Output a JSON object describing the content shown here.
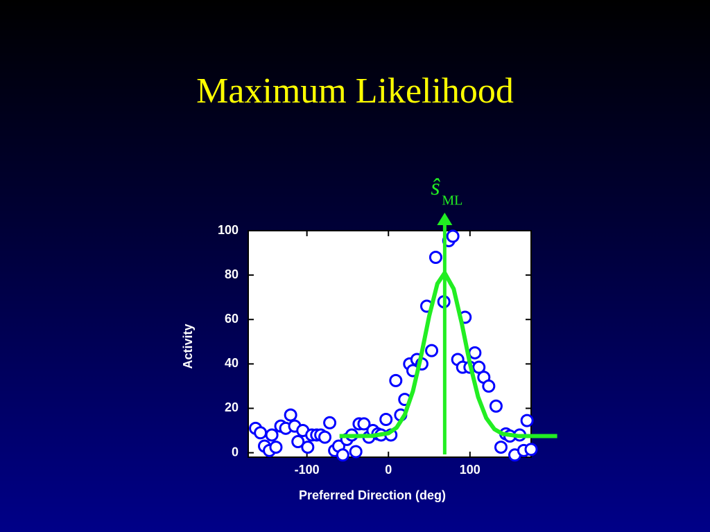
{
  "chart_data": {
    "type": "scatter",
    "title": "Maximum Likelihood",
    "x_label": "Preferred Direction (deg)",
    "y_label": "Activity",
    "xlim": [
      -172,
      175
    ],
    "ylim": [
      -2,
      100
    ],
    "xticks": [
      -100,
      0,
      100
    ],
    "yticks": [
      0,
      20,
      40,
      60,
      80,
      100
    ],
    "points": {
      "color": "#0000ff",
      "x": [
        -163,
        -157,
        -152,
        -146,
        -143,
        -138,
        -132,
        -126,
        -120,
        -115,
        -111,
        -105,
        -99,
        -94,
        -88,
        -83,
        -78,
        -72,
        -66,
        -61,
        -56,
        -51,
        -45,
        -40,
        -36,
        -30,
        -24,
        -19,
        -13,
        -9,
        -3,
        3,
        9,
        15,
        20,
        26,
        30,
        35,
        41,
        47,
        53,
        58,
        68,
        74,
        79,
        85,
        91,
        94,
        100,
        106,
        111,
        117,
        123,
        132,
        138,
        144,
        149,
        155,
        161,
        166,
        170,
        175
      ],
      "y": [
        11,
        9,
        3,
        1,
        8,
        2.5,
        12,
        11,
        17,
        12,
        5,
        10,
        2.5,
        8,
        8,
        8,
        7,
        13.5,
        1,
        3,
        -1,
        6,
        8,
        0.5,
        13,
        13,
        7,
        10,
        8.5,
        8,
        15,
        8,
        32.5,
        17,
        24,
        40,
        37,
        42,
        40,
        66,
        46,
        88,
        68,
        95.5,
        97.5,
        42,
        38.5,
        61,
        38.5,
        45,
        38.5,
        34,
        30,
        21,
        2.5,
        8.5,
        7.5,
        -1,
        8,
        1,
        14.5,
        1.5
      ]
    },
    "curve": {
      "color": "#22ee22",
      "x": [
        -60,
        -40,
        -20,
        0,
        10,
        20,
        30,
        40,
        50,
        60,
        69,
        80,
        90,
        100,
        110,
        120,
        130,
        140,
        160,
        180,
        207
      ],
      "y": [
        7.5,
        7.5,
        7.6,
        8.8,
        11.3,
        17.1,
        27.7,
        43.5,
        61.6,
        76.1,
        81,
        73.8,
        58.1,
        40,
        25.1,
        15.6,
        10.6,
        8.5,
        7.5,
        7.5,
        7.5
      ]
    },
    "estimate": {
      "x": 69,
      "symbol": "ŝ",
      "subscript": "ML",
      "color": "#22ee22"
    }
  }
}
